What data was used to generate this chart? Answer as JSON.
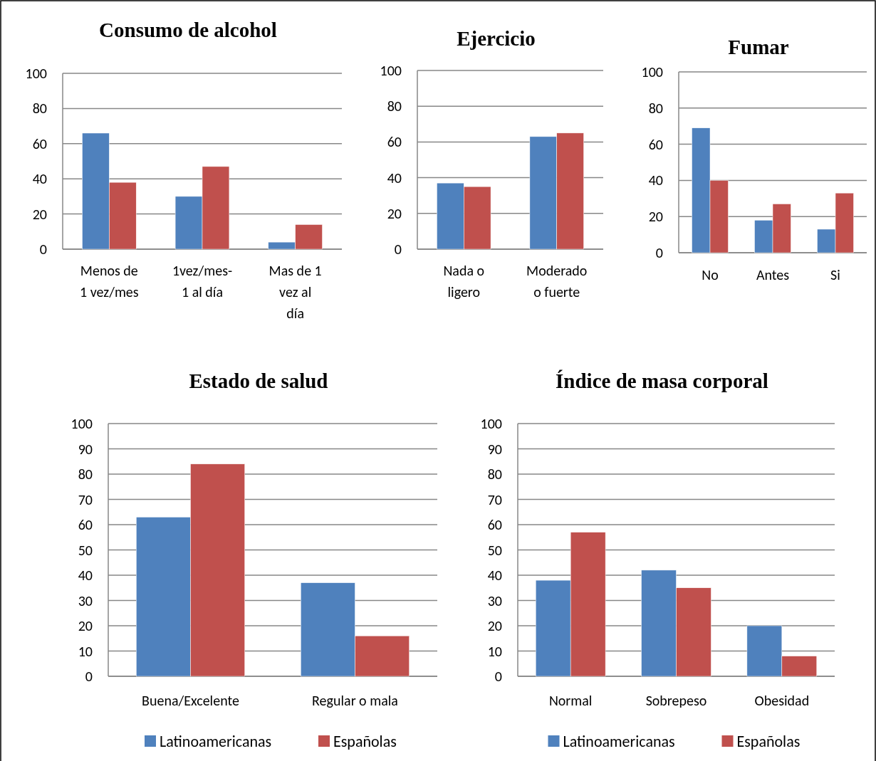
{
  "chart_data": [
    {
      "type": "bar",
      "title": "Consumo de alcohol",
      "categories": [
        "Menos de 1 vez/mes",
        "1vez/mes- 1 al día",
        "Mas de 1 vez al día"
      ],
      "series": [
        {
          "color": "#4f81bd",
          "values": [
            66,
            30,
            4
          ]
        },
        {
          "color": "#c0504d",
          "values": [
            38,
            47,
            14
          ]
        }
      ],
      "ylim": [
        0,
        100
      ],
      "yticks": [
        0,
        20,
        40,
        60,
        80,
        100
      ],
      "grid": "y",
      "legend": false
    },
    {
      "type": "bar",
      "title": "Ejercicio",
      "categories": [
        "Nada o ligero",
        "Moderado o fuerte"
      ],
      "series": [
        {
          "color": "#4f81bd",
          "values": [
            37,
            63
          ]
        },
        {
          "color": "#c0504d",
          "values": [
            35,
            65
          ]
        }
      ],
      "ylim": [
        0,
        100
      ],
      "yticks": [
        0,
        20,
        40,
        60,
        80,
        100
      ],
      "grid": "y",
      "legend": false
    },
    {
      "type": "bar",
      "title": "Fumar",
      "categories": [
        "No",
        "Antes",
        "Si"
      ],
      "series": [
        {
          "color": "#4f81bd",
          "values": [
            69,
            18,
            13
          ]
        },
        {
          "color": "#c0504d",
          "values": [
            40,
            27,
            33
          ]
        }
      ],
      "ylim": [
        0,
        100
      ],
      "yticks": [
        0,
        20,
        40,
        60,
        80,
        100
      ],
      "grid": "y",
      "legend": false
    },
    {
      "type": "bar",
      "title": "Estado de salud",
      "categories": [
        "Buena/Excelente",
        "Regular o mala"
      ],
      "series": [
        {
          "name": "Latinoamericanas",
          "color": "#4f81bd",
          "values": [
            63,
            37
          ]
        },
        {
          "name": "Españolas",
          "color": "#c0504d",
          "values": [
            84,
            16
          ]
        }
      ],
      "ylim": [
        0,
        100
      ],
      "yticks": [
        0,
        10,
        20,
        30,
        40,
        50,
        60,
        70,
        80,
        90,
        100
      ],
      "grid": "y",
      "legend": "bottom"
    },
    {
      "type": "bar",
      "title": "Índice de masa corporal",
      "categories": [
        "Normal",
        "Sobrepeso",
        "Obesidad"
      ],
      "series": [
        {
          "name": "Latinoamericanas",
          "color": "#4f81bd",
          "values": [
            38,
            42,
            20
          ]
        },
        {
          "name": "Españolas",
          "color": "#c0504d",
          "values": [
            57,
            35,
            8
          ]
        }
      ],
      "ylim": [
        0,
        100
      ],
      "yticks": [
        0,
        10,
        20,
        30,
        40,
        50,
        60,
        70,
        80,
        90,
        100
      ],
      "grid": "y",
      "legend": "bottom"
    }
  ]
}
